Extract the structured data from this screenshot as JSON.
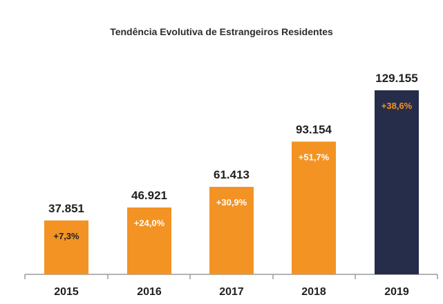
{
  "chart_data": {
    "type": "bar",
    "title": "Tendência Evolutiva de Estrangeiros Residentes",
    "categories": [
      "2015",
      "2016",
      "2017",
      "2018",
      "2019"
    ],
    "values": [
      37851,
      46921,
      61413,
      93154,
      129155
    ],
    "value_labels": [
      "37.851",
      "46.921",
      "61.413",
      "93.154",
      "129.155"
    ],
    "growth_labels": [
      "+7,3%",
      "+24,0%",
      "+30,9%",
      "+51,7%",
      "+38,6%"
    ],
    "bar_colors": [
      "#f39323",
      "#f39323",
      "#f39323",
      "#f39323",
      "#252d4a"
    ],
    "growth_label_colors": [
      "#1f1f1f",
      "#ffffff",
      "#ffffff",
      "#ffffff",
      "#f39323"
    ],
    "xlabel": "",
    "ylabel": "",
    "ylim": [
      0,
      135000
    ],
    "grid": false,
    "legend": "none"
  }
}
